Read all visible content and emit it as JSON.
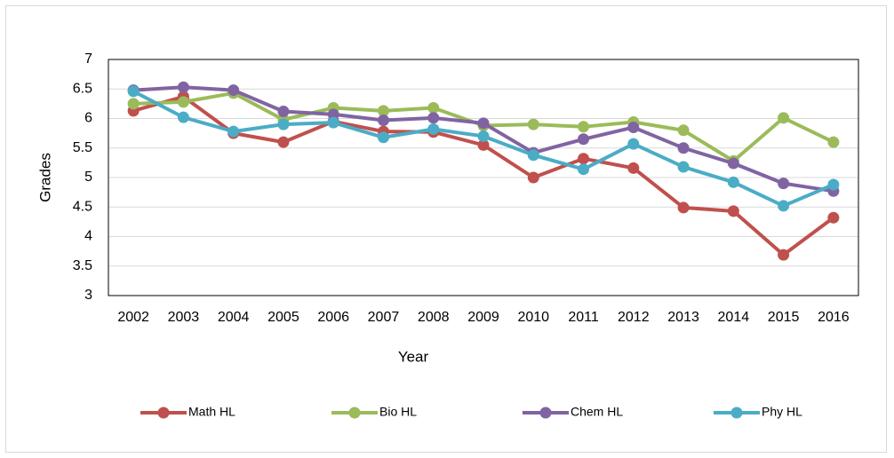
{
  "chart_data": {
    "type": "line",
    "x_label": "Year",
    "y_label": "Grades",
    "categories": [
      "2002",
      "2003",
      "2004",
      "2005",
      "2006",
      "2007",
      "2008",
      "2009",
      "2010",
      "2011",
      "2012",
      "2013",
      "2014",
      "2015",
      "2016"
    ],
    "series": [
      {
        "name": "Math HL",
        "color": "#c0504d",
        "values": [
          6.13,
          6.37,
          5.75,
          5.6,
          5.95,
          5.78,
          5.77,
          5.55,
          5.0,
          5.32,
          5.16,
          4.49,
          4.43,
          3.69,
          4.32
        ]
      },
      {
        "name": "Bio HL",
        "color": "#9bbb59",
        "values": [
          6.25,
          6.28,
          6.43,
          5.98,
          6.18,
          6.13,
          6.18,
          5.88,
          5.9,
          5.86,
          5.94,
          5.8,
          5.28,
          6.01,
          5.6
        ]
      },
      {
        "name": "Chem HL",
        "color": "#8064a2",
        "values": [
          6.48,
          6.53,
          6.48,
          6.12,
          6.07,
          5.97,
          6.01,
          5.92,
          5.42,
          5.65,
          5.85,
          5.5,
          5.24,
          4.9,
          4.77
        ]
      },
      {
        "name": "Phy HL",
        "color": "#4bacc6",
        "values": [
          6.46,
          6.02,
          5.78,
          5.9,
          5.93,
          5.68,
          5.82,
          5.7,
          5.38,
          5.14,
          5.57,
          5.18,
          4.92,
          4.52,
          4.88
        ]
      }
    ],
    "ylim": [
      3,
      7
    ],
    "yticks": [
      3,
      3.5,
      4,
      4.5,
      5,
      5.5,
      6,
      6.5,
      7
    ],
    "grid": true,
    "legend": "bottom"
  }
}
